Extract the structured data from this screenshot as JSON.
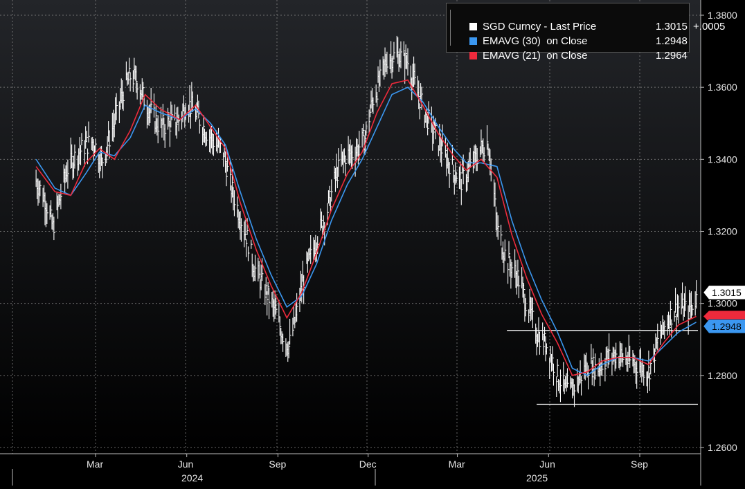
{
  "chart_data": {
    "type": "line",
    "title": "",
    "xlabel": "",
    "ylabel": "",
    "ylim": [
      1.258,
      1.3835
    ],
    "y_ticks": [
      "1.2600",
      "1.2800",
      "1.3000",
      "1.3200",
      "1.3400",
      "1.3600",
      "1.3800"
    ],
    "x_ticks": [
      "Mar",
      "Jun",
      "Sep",
      "Dec",
      "Mar",
      "Jun",
      "Sep"
    ],
    "x_tick_dates": [
      "2024-03-01",
      "2024-06-01",
      "2024-09-01",
      "2024-12-01",
      "2025-03-01",
      "2025-06-01",
      "2025-09-01"
    ],
    "year_labels": [
      "2024",
      "2025"
    ],
    "x_range": [
      "2024-01-01",
      "2025-10-31"
    ],
    "grid": true,
    "legend_position": "top-right",
    "series": [
      {
        "name": "SGD Curncy - Last Price",
        "style": "bars",
        "color": "#ffffff",
        "last_value": "1.3015",
        "change": "+.0005",
        "points": [
          [
            "2024-01-01",
            1.334
          ],
          [
            "2024-01-10",
            1.329
          ],
          [
            "2024-01-18",
            1.321
          ],
          [
            "2024-01-25",
            1.329
          ],
          [
            "2024-02-01",
            1.337
          ],
          [
            "2024-02-10",
            1.341
          ],
          [
            "2024-02-20",
            1.344
          ],
          [
            "2024-02-28",
            1.345
          ],
          [
            "2024-03-07",
            1.339
          ],
          [
            "2024-03-15",
            1.346
          ],
          [
            "2024-03-22",
            1.352
          ],
          [
            "2024-03-29",
            1.359
          ],
          [
            "2024-04-05",
            1.363
          ],
          [
            "2024-04-12",
            1.362
          ],
          [
            "2024-04-20",
            1.356
          ],
          [
            "2024-04-28",
            1.352
          ],
          [
            "2024-05-05",
            1.349
          ],
          [
            "2024-05-15",
            1.35
          ],
          [
            "2024-05-25",
            1.351
          ],
          [
            "2024-06-01",
            1.356
          ],
          [
            "2024-06-10",
            1.353
          ],
          [
            "2024-06-20",
            1.348
          ],
          [
            "2024-07-01",
            1.344
          ],
          [
            "2024-07-08",
            1.342
          ],
          [
            "2024-07-15",
            1.333
          ],
          [
            "2024-07-25",
            1.324
          ],
          [
            "2024-08-01",
            1.318
          ],
          [
            "2024-08-08",
            1.31
          ],
          [
            "2024-08-15",
            1.306
          ],
          [
            "2024-08-22",
            1.302
          ],
          [
            "2024-08-29",
            1.298
          ],
          [
            "2024-09-05",
            1.292
          ],
          [
            "2024-09-12",
            1.288
          ],
          [
            "2024-09-19",
            1.296
          ],
          [
            "2024-09-26",
            1.306
          ],
          [
            "2024-10-03",
            1.312
          ],
          [
            "2024-10-10",
            1.318
          ],
          [
            "2024-10-20",
            1.325
          ],
          [
            "2024-10-30",
            1.336
          ],
          [
            "2024-11-08",
            1.341
          ],
          [
            "2024-11-18",
            1.342
          ],
          [
            "2024-11-28",
            1.346
          ],
          [
            "2024-12-05",
            1.356
          ],
          [
            "2024-12-12",
            1.361
          ],
          [
            "2024-12-20",
            1.368
          ],
          [
            "2024-12-31",
            1.369
          ],
          [
            "2025-01-10",
            1.367
          ],
          [
            "2025-01-18",
            1.36
          ],
          [
            "2025-01-27",
            1.353
          ],
          [
            "2025-02-05",
            1.348
          ],
          [
            "2025-02-15",
            1.342
          ],
          [
            "2025-02-25",
            1.337
          ],
          [
            "2025-03-05",
            1.334
          ],
          [
            "2025-03-15",
            1.338
          ],
          [
            "2025-03-25",
            1.343
          ],
          [
            "2025-04-01",
            1.345
          ],
          [
            "2025-04-05",
            1.336
          ],
          [
            "2025-04-10",
            1.321
          ],
          [
            "2025-04-20",
            1.312
          ],
          [
            "2025-04-30",
            1.308
          ],
          [
            "2025-05-10",
            1.3
          ],
          [
            "2025-05-20",
            1.292
          ],
          [
            "2025-05-31",
            1.288
          ],
          [
            "2025-06-10",
            1.28
          ],
          [
            "2025-06-20",
            1.275
          ],
          [
            "2025-06-30",
            1.278
          ],
          [
            "2025-07-10",
            1.283
          ],
          [
            "2025-07-20",
            1.282
          ],
          [
            "2025-07-31",
            1.285
          ],
          [
            "2025-08-10",
            1.286
          ],
          [
            "2025-08-20",
            1.284
          ],
          [
            "2025-08-31",
            1.283
          ],
          [
            "2025-09-10",
            1.281
          ],
          [
            "2025-09-20",
            1.29
          ],
          [
            "2025-09-30",
            1.296
          ],
          [
            "2025-10-10",
            1.299
          ],
          [
            "2025-10-20",
            1.298
          ],
          [
            "2025-10-28",
            1.3015
          ]
        ]
      },
      {
        "name": "EMAVG (30)  on Close",
        "style": "line",
        "color": "#3b97f0",
        "last_value": "1.2948",
        "points": [
          [
            "2024-01-01",
            1.34
          ],
          [
            "2024-01-20",
            1.332
          ],
          [
            "2024-02-05",
            1.33
          ],
          [
            "2024-02-20",
            1.336
          ],
          [
            "2024-03-05",
            1.342
          ],
          [
            "2024-03-20",
            1.341
          ],
          [
            "2024-04-05",
            1.346
          ],
          [
            "2024-04-20",
            1.355
          ],
          [
            "2024-05-05",
            1.353
          ],
          [
            "2024-05-25",
            1.351
          ],
          [
            "2024-06-10",
            1.354
          ],
          [
            "2024-06-25",
            1.35
          ],
          [
            "2024-07-10",
            1.344
          ],
          [
            "2024-07-25",
            1.331
          ],
          [
            "2024-08-10",
            1.318
          ],
          [
            "2024-08-25",
            1.308
          ],
          [
            "2024-09-10",
            1.299
          ],
          [
            "2024-09-25",
            1.302
          ],
          [
            "2024-10-10",
            1.311
          ],
          [
            "2024-10-25",
            1.323
          ],
          [
            "2024-11-10",
            1.333
          ],
          [
            "2024-11-25",
            1.34
          ],
          [
            "2024-12-10",
            1.349
          ],
          [
            "2024-12-25",
            1.358
          ],
          [
            "2025-01-10",
            1.36
          ],
          [
            "2025-01-25",
            1.356
          ],
          [
            "2025-02-10",
            1.349
          ],
          [
            "2025-02-25",
            1.343
          ],
          [
            "2025-03-10",
            1.339
          ],
          [
            "2025-03-25",
            1.339
          ],
          [
            "2025-04-10",
            1.338
          ],
          [
            "2025-04-25",
            1.323
          ],
          [
            "2025-05-10",
            1.311
          ],
          [
            "2025-05-25",
            1.301
          ],
          [
            "2025-06-10",
            1.292
          ],
          [
            "2025-06-25",
            1.282
          ],
          [
            "2025-07-10",
            1.28
          ],
          [
            "2025-07-25",
            1.283
          ],
          [
            "2025-08-10",
            1.285
          ],
          [
            "2025-08-25",
            1.285
          ],
          [
            "2025-09-10",
            1.284
          ],
          [
            "2025-09-25",
            1.288
          ],
          [
            "2025-10-10",
            1.292
          ],
          [
            "2025-10-28",
            1.2948
          ]
        ]
      },
      {
        "name": "EMAVG (21)  on Close",
        "style": "line",
        "color": "#ee2a3c",
        "last_value": "1.2964",
        "points": [
          [
            "2024-01-01",
            1.338
          ],
          [
            "2024-01-20",
            1.331
          ],
          [
            "2024-02-05",
            1.33
          ],
          [
            "2024-02-20",
            1.339
          ],
          [
            "2024-03-05",
            1.343
          ],
          [
            "2024-03-20",
            1.34
          ],
          [
            "2024-04-05",
            1.348
          ],
          [
            "2024-04-20",
            1.358
          ],
          [
            "2024-05-05",
            1.354
          ],
          [
            "2024-05-25",
            1.351
          ],
          [
            "2024-06-10",
            1.355
          ],
          [
            "2024-06-25",
            1.349
          ],
          [
            "2024-07-10",
            1.343
          ],
          [
            "2024-07-25",
            1.328
          ],
          [
            "2024-08-10",
            1.315
          ],
          [
            "2024-08-25",
            1.305
          ],
          [
            "2024-09-10",
            1.296
          ],
          [
            "2024-09-25",
            1.303
          ],
          [
            "2024-10-10",
            1.314
          ],
          [
            "2024-10-25",
            1.326
          ],
          [
            "2024-11-10",
            1.336
          ],
          [
            "2024-11-25",
            1.342
          ],
          [
            "2024-12-10",
            1.353
          ],
          [
            "2024-12-25",
            1.361
          ],
          [
            "2025-01-10",
            1.362
          ],
          [
            "2025-01-25",
            1.355
          ],
          [
            "2025-02-10",
            1.347
          ],
          [
            "2025-02-25",
            1.341
          ],
          [
            "2025-03-10",
            1.337
          ],
          [
            "2025-03-25",
            1.34
          ],
          [
            "2025-04-10",
            1.335
          ],
          [
            "2025-04-25",
            1.319
          ],
          [
            "2025-05-10",
            1.307
          ],
          [
            "2025-05-25",
            1.297
          ],
          [
            "2025-06-10",
            1.289
          ],
          [
            "2025-06-25",
            1.28
          ],
          [
            "2025-07-10",
            1.281
          ],
          [
            "2025-07-25",
            1.284
          ],
          [
            "2025-08-10",
            1.285
          ],
          [
            "2025-08-25",
            1.285
          ],
          [
            "2025-09-10",
            1.283
          ],
          [
            "2025-09-25",
            1.289
          ],
          [
            "2025-10-10",
            1.294
          ],
          [
            "2025-10-28",
            1.2964
          ]
        ]
      }
    ],
    "horizontal_levels": [
      {
        "value": 1.2925,
        "from": "2025-04-20",
        "to": "2025-10-31"
      },
      {
        "value": 1.272,
        "from": "2025-05-20",
        "to": "2025-10-31"
      }
    ],
    "axis_tags": [
      {
        "label": "1.3015",
        "value": 1.3015,
        "bg": "#ffffff",
        "fg": "#000000"
      },
      {
        "label": "1.2948",
        "value": 1.2948,
        "bg": "#3b97f0",
        "fg": "#000000"
      }
    ]
  },
  "legend": {
    "rows": [
      {
        "text": "SGD Curncy - Last Price",
        "value": "1.3015",
        "change": "+.0005",
        "color": "#ffffff"
      },
      {
        "text": "EMAVG (30)  on Close",
        "value": "1.2948",
        "change": "",
        "color": "#3b97f0"
      },
      {
        "text": "EMAVG (21)  on Close",
        "value": "1.2964",
        "change": "",
        "color": "#ee2a3c"
      }
    ]
  }
}
